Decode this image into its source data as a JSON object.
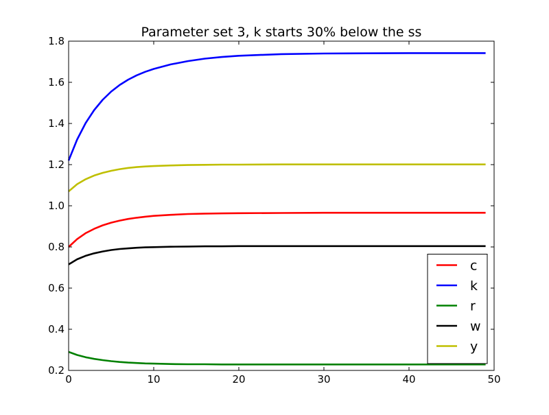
{
  "chart_data": {
    "type": "line",
    "title": "Parameter set 3, k starts 30% below the ss",
    "xlabel": "",
    "ylabel": "",
    "xlim": [
      0,
      50
    ],
    "ylim": [
      0.2,
      1.8
    ],
    "x_ticks": [
      0,
      10,
      20,
      30,
      40,
      50
    ],
    "y_ticks": [
      0.2,
      0.4,
      0.6,
      0.8,
      1.0,
      1.2,
      1.4,
      1.6,
      1.8
    ],
    "x_tick_labels": [
      "0",
      "10",
      "20",
      "30",
      "40",
      "50"
    ],
    "y_tick_labels": [
      "0.2",
      "0.4",
      "0.6",
      "0.8",
      "1.0",
      "1.2",
      "1.4",
      "1.6",
      "1.8"
    ],
    "grid": false,
    "legend_position": "lower-right",
    "x": [
      0,
      1,
      2,
      3,
      4,
      5,
      6,
      7,
      8,
      9,
      10,
      12,
      14,
      16,
      18,
      20,
      25,
      30,
      35,
      40,
      45,
      49
    ],
    "series": [
      {
        "name": "c",
        "color": "#ff0000",
        "values": [
          0.8,
          0.838,
          0.867,
          0.888,
          0.905,
          0.918,
          0.928,
          0.936,
          0.942,
          0.947,
          0.951,
          0.956,
          0.96,
          0.962,
          0.963,
          0.964,
          0.965,
          0.966,
          0.966,
          0.966,
          0.966,
          0.966
        ]
      },
      {
        "name": "k",
        "color": "#0000ff",
        "values": [
          1.22,
          1.322,
          1.402,
          1.465,
          1.515,
          1.555,
          1.587,
          1.613,
          1.634,
          1.651,
          1.665,
          1.687,
          1.703,
          1.715,
          1.723,
          1.729,
          1.737,
          1.74,
          1.741,
          1.742,
          1.742,
          1.742
        ]
      },
      {
        "name": "r",
        "color": "#008000",
        "values": [
          0.29,
          0.275,
          0.264,
          0.256,
          0.25,
          0.245,
          0.241,
          0.238,
          0.236,
          0.234,
          0.233,
          0.231,
          0.23,
          0.23,
          0.229,
          0.229,
          0.229,
          0.229,
          0.229,
          0.229,
          0.229,
          0.229
        ]
      },
      {
        "name": "w",
        "color": "#000000",
        "values": [
          0.715,
          0.74,
          0.757,
          0.769,
          0.778,
          0.785,
          0.79,
          0.793,
          0.796,
          0.798,
          0.799,
          0.801,
          0.802,
          0.803,
          0.803,
          0.804,
          0.804,
          0.804,
          0.804,
          0.804,
          0.804,
          0.804
        ]
      },
      {
        "name": "y",
        "color": "#bfbf00",
        "values": [
          1.07,
          1.105,
          1.129,
          1.147,
          1.16,
          1.17,
          1.178,
          1.184,
          1.188,
          1.191,
          1.193,
          1.196,
          1.198,
          1.199,
          1.2,
          1.2,
          1.201,
          1.201,
          1.201,
          1.201,
          1.201,
          1.201
        ]
      }
    ]
  }
}
